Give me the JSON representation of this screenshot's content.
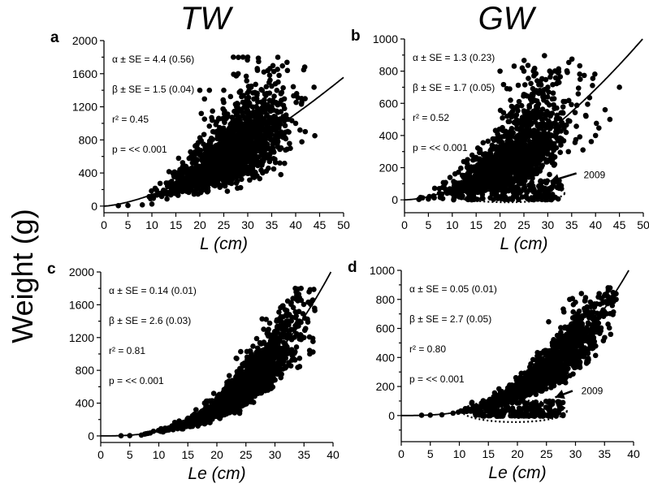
{
  "column_titles": [
    "TW",
    "GW"
  ],
  "shared_ylabel": "Weight (g)",
  "chart_data": [
    {
      "panel": "a",
      "type": "scatter",
      "xlabel": "L (cm)",
      "xlim": [
        0,
        50
      ],
      "xticks": [
        0,
        5,
        10,
        15,
        20,
        25,
        30,
        35,
        40,
        45,
        50
      ],
      "ylim": [
        -80,
        2000
      ],
      "yticks": [
        0,
        400,
        800,
        1200,
        1600,
        2000
      ],
      "stats": [
        "α ± SE = 4.4 (0.56)",
        "β ± SE = 1.5 (0.04)",
        "r² = 0.45",
        "p = << 0.001"
      ],
      "fit": {
        "alpha": 4.4,
        "beta": 1.5
      },
      "cloud": {
        "n": 1800,
        "xmin": 3,
        "xmax": 44,
        "mean": 26,
        "sd": 6,
        "noise": 0.34
      },
      "points": [
        [
          3,
          5
        ],
        [
          5,
          8
        ],
        [
          8,
          15
        ],
        [
          10,
          25
        ],
        [
          27,
          1800
        ],
        [
          29,
          1800
        ],
        [
          30,
          1800
        ],
        [
          20,
          1400
        ],
        [
          22,
          1400
        ],
        [
          25,
          1400
        ],
        [
          28,
          1600
        ],
        [
          33,
          1400
        ],
        [
          40,
          1000
        ],
        [
          44,
          850
        ],
        [
          42,
          900
        ],
        [
          38,
          1100
        ],
        [
          35,
          1200
        ],
        [
          36,
          950
        ]
      ],
      "annotation": null
    },
    {
      "panel": "b",
      "type": "scatter",
      "xlabel": "L (cm)",
      "xlim": [
        0,
        50
      ],
      "xticks": [
        0,
        5,
        10,
        15,
        20,
        25,
        30,
        35,
        40,
        45,
        50
      ],
      "ylim": [
        -80,
        1000
      ],
      "yticks": [
        0,
        200,
        400,
        600,
        800,
        1000
      ],
      "stats": [
        "α ± SE = 1.3 (0.23)",
        "β ± SE = 1.7 (0.05)",
        "r² = 0.52",
        "p = << 0.001"
      ],
      "fit": {
        "alpha": 1.3,
        "beta": 1.7
      },
      "cloud": {
        "n": 1400,
        "xmin": 3,
        "xmax": 45,
        "mean": 22,
        "sd": 6,
        "noise": 0.4
      },
      "low_cluster": {
        "n": 220,
        "xmin": 10,
        "xmax": 33,
        "ymin": 0,
        "ymax": 120
      },
      "points": [
        [
          3,
          3
        ],
        [
          5,
          5
        ],
        [
          8,
          8
        ],
        [
          20,
          800
        ],
        [
          25,
          800
        ],
        [
          27,
          800
        ],
        [
          30,
          700
        ],
        [
          45,
          700
        ],
        [
          42,
          560
        ],
        [
          38,
          520
        ],
        [
          40,
          400
        ],
        [
          43,
          500
        ]
      ],
      "annotation": {
        "text": "2009",
        "ellipse": {
          "cx": 21.5,
          "cy": 40,
          "rx": 12,
          "ry": 55
        },
        "arrow_from": [
          36,
          165
        ],
        "arrow_to": [
          30.5,
          115
        ],
        "label_at": [
          37.5,
          155
        ]
      }
    },
    {
      "panel": "c",
      "type": "scatter",
      "xlabel": "Le (cm)",
      "xlim": [
        0,
        40
      ],
      "xticks": [
        0,
        5,
        10,
        15,
        20,
        25,
        30,
        35,
        40
      ],
      "ylim": [
        -80,
        2000
      ],
      "yticks": [
        0,
        400,
        800,
        1200,
        1600,
        2000
      ],
      "stats": [
        "α ± SE = 0.14 (0.01)",
        "β ± SE = 2.6 (0.03)",
        "r² = 0.81",
        "p = << 0.001"
      ],
      "fit": {
        "alpha": 0.14,
        "beta": 2.6
      },
      "cloud": {
        "n": 1800,
        "xmin": 3,
        "xmax": 37,
        "mean": 24,
        "sd": 5,
        "noise": 0.2
      },
      "points": [
        [
          3.5,
          2
        ],
        [
          5,
          4
        ],
        [
          7,
          10
        ],
        [
          33.5,
          1800
        ],
        [
          34.5,
          1800
        ],
        [
          31,
          1400
        ],
        [
          32,
          1400
        ],
        [
          34,
          1400
        ],
        [
          35,
          1200
        ],
        [
          36,
          1000
        ],
        [
          30,
          1100
        ]
      ],
      "annotation": null
    },
    {
      "panel": "d",
      "type": "scatter",
      "xlabel": "Le (cm)",
      "xlim": [
        0,
        40
      ],
      "xticks": [
        0,
        5,
        10,
        15,
        20,
        25,
        30,
        35,
        40
      ],
      "ylim": [
        -180,
        1000
      ],
      "yticks": [
        0,
        200,
        400,
        600,
        800,
        1000
      ],
      "stats": [
        "α ± SE = 0.05 (0.01)",
        "β ± SE = 2.7 (0.05)",
        "r² = 0.80",
        "p = << 0.001"
      ],
      "fit": {
        "alpha": 0.05,
        "beta": 2.7
      },
      "cloud": {
        "n": 1400,
        "xmin": 3.5,
        "xmax": 37,
        "mean": 25,
        "sd": 5,
        "noise": 0.2
      },
      "low_cluster": {
        "n": 200,
        "xmin": 12,
        "xmax": 28,
        "ymin": -5,
        "ymax": 100
      },
      "points": [
        [
          3.5,
          2
        ],
        [
          5,
          3
        ],
        [
          7,
          5
        ],
        [
          37,
          800
        ],
        [
          36,
          780
        ],
        [
          34,
          700
        ],
        [
          29,
          800
        ],
        [
          30,
          780
        ],
        [
          33,
          760
        ]
      ],
      "annotation": {
        "text": "2009",
        "ellipse": {
          "cx": 19.5,
          "cy": 30,
          "rx": 9,
          "ry": 75
        },
        "arrow_from": [
          29.5,
          170
        ],
        "arrow_to": [
          26.5,
          125
        ],
        "label_at": [
          31,
          170
        ]
      }
    }
  ]
}
